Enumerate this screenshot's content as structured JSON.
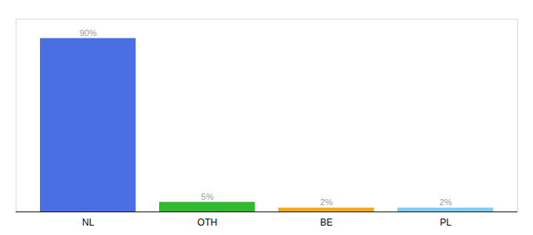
{
  "chart_data": {
    "type": "bar",
    "categories": [
      "NL",
      "OTH",
      "BE",
      "PL"
    ],
    "values": [
      90,
      5,
      2,
      2
    ],
    "value_labels": [
      "90%",
      "5%",
      "2%",
      "2%"
    ],
    "colors": [
      "#4a6fe3",
      "#33b830",
      "#f5a623",
      "#7ecef4"
    ],
    "ylim": [
      0,
      100
    ],
    "data_labels": true,
    "tick_labels": "x"
  }
}
